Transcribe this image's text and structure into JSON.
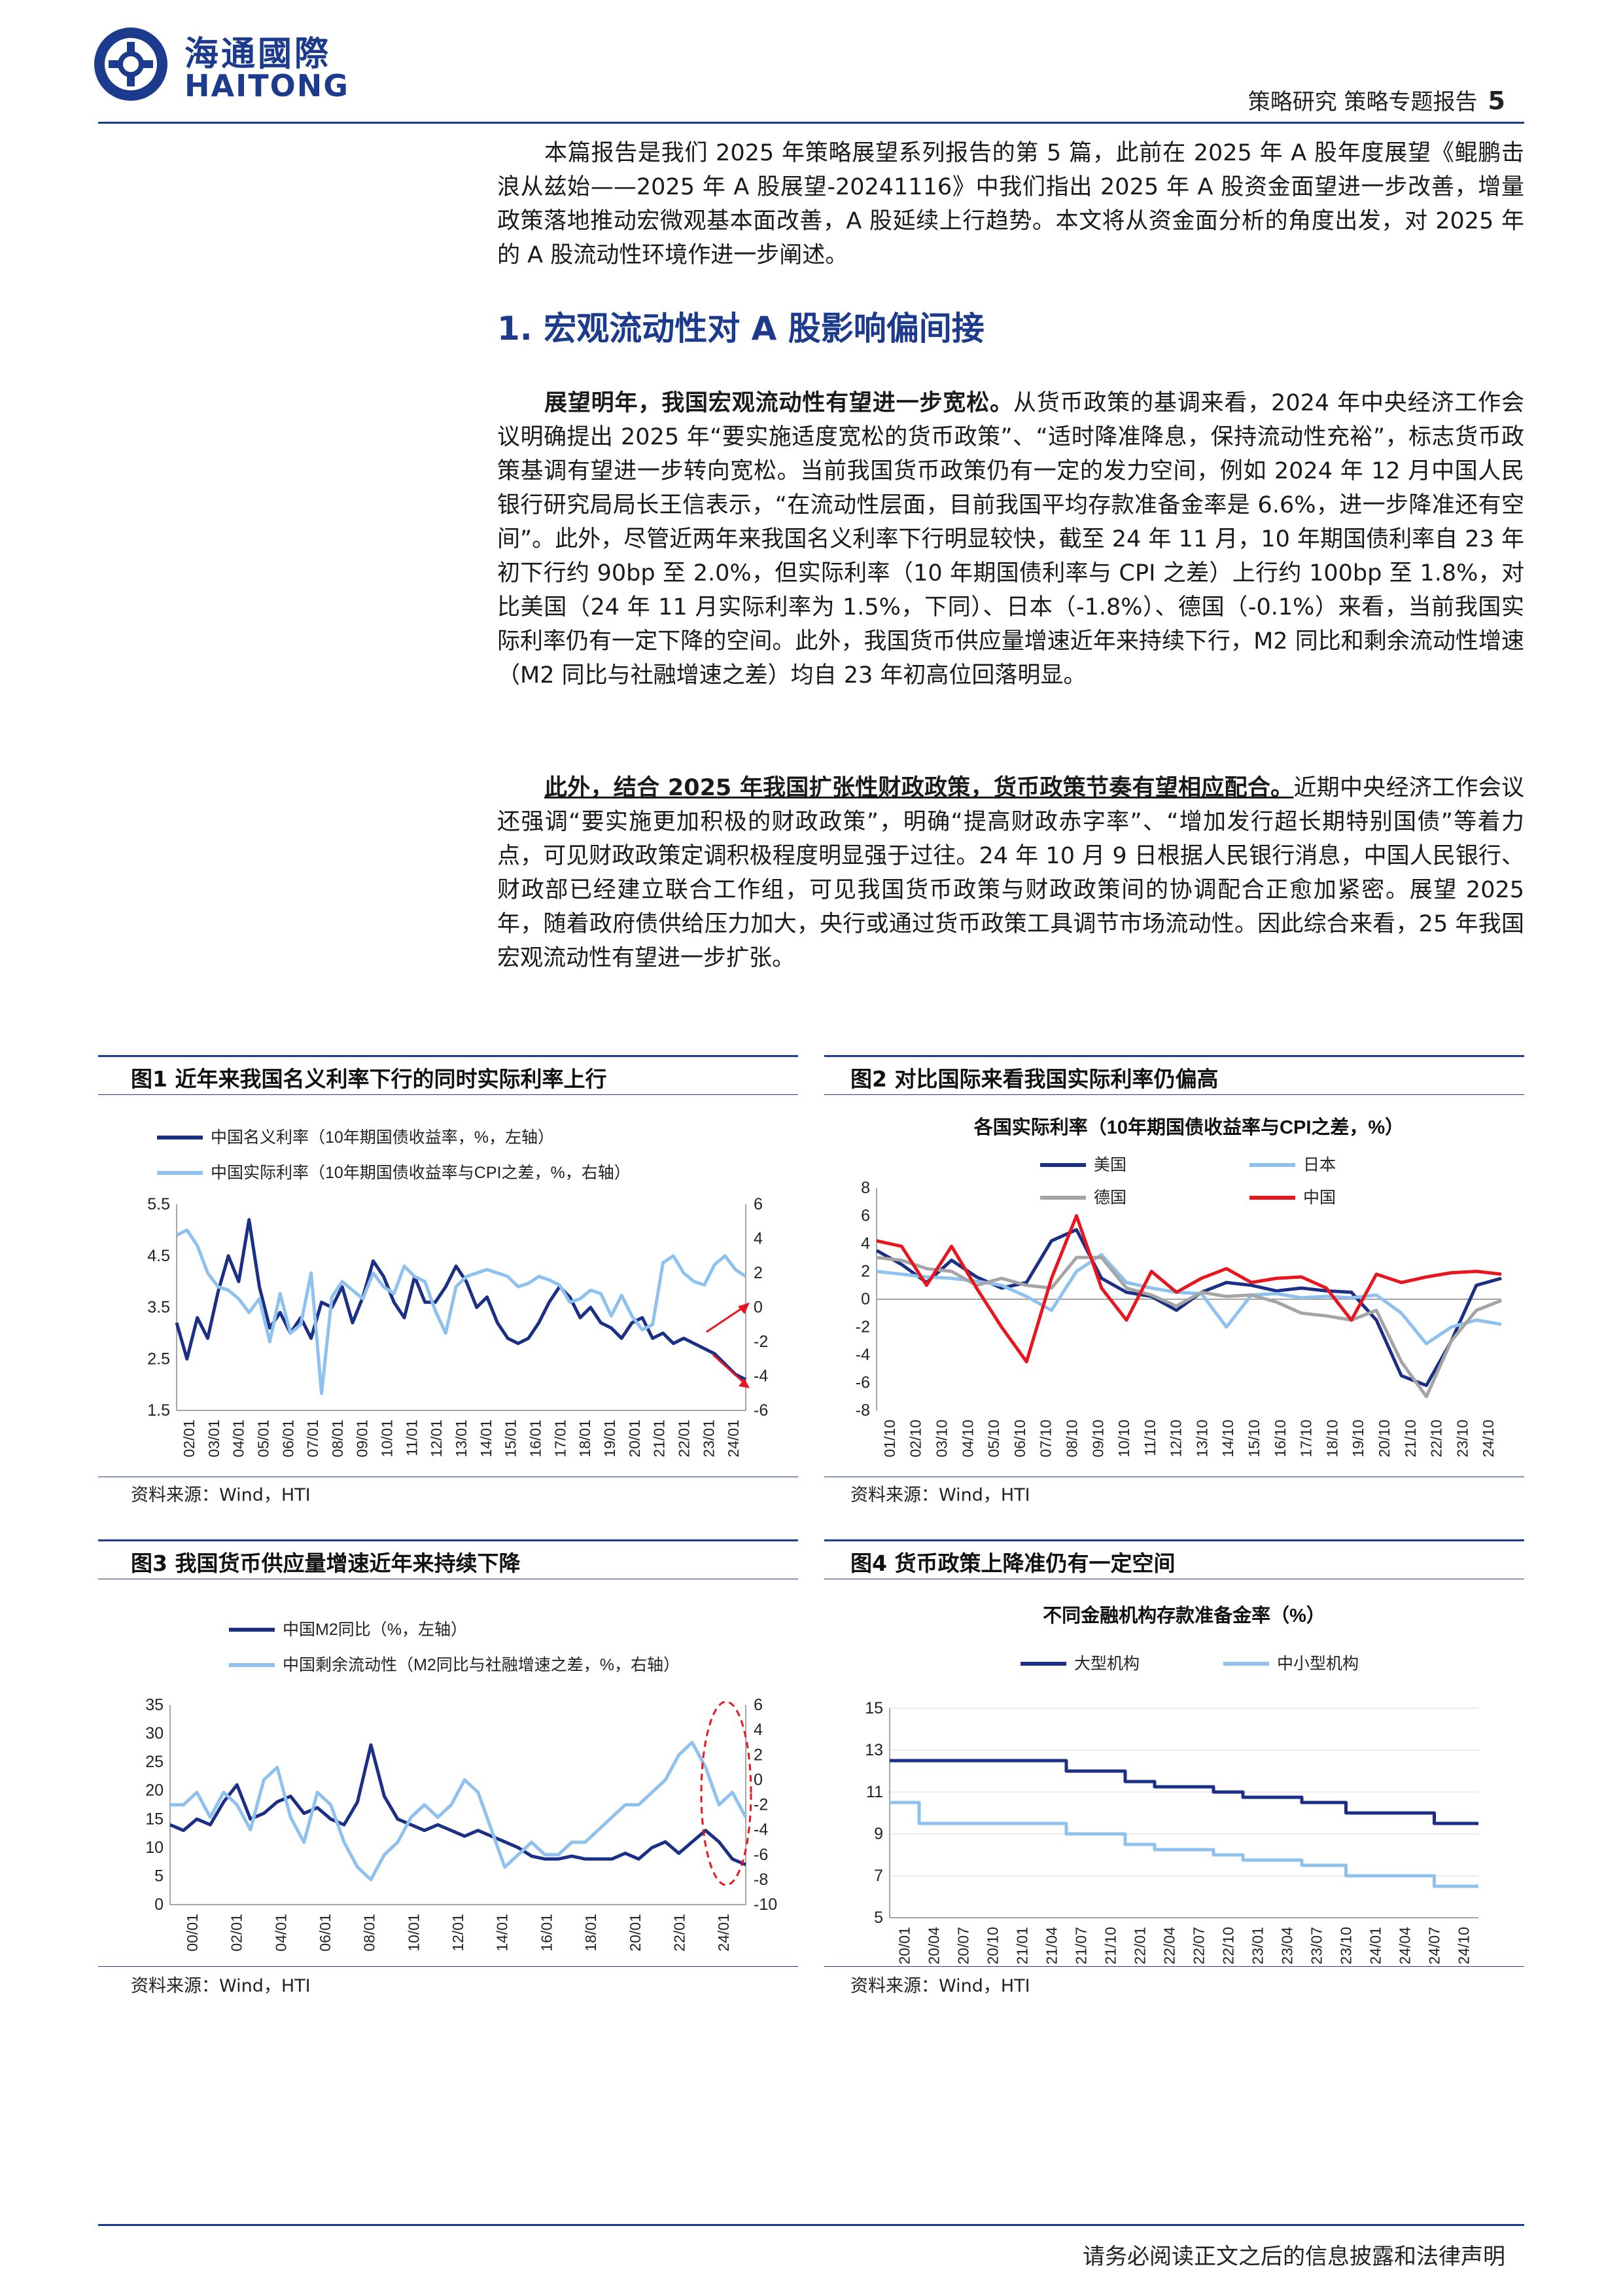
{
  "header": {
    "logo_cn": "海通國際",
    "logo_en": "HAITONG",
    "section": "策略研究  策略专题报告",
    "page_number": "5"
  },
  "intro": "本篇报告是我们 2025 年策略展望系列报告的第 5 篇，此前在 2025 年 A 股年度展望《鲲鹏击浪从兹始——2025 年 A 股展望-20241116》中我们指出 2025 年 A 股资金面望进一步改善，增量政策落地推动宏微观基本面改善，A 股延续上行趋势。本文将从资金面分析的角度出发，对 2025 年的 A 股流动性环境作进一步阐述。",
  "section1_title": "1.  宏观流动性对 A 股影响偏间接",
  "para1_lead": "展望明年，我国宏观流动性有望进一步宽松。",
  "para1_body": "从货币政策的基调来看，2024 年中央经济工作会议明确提出 2025 年“要实施适度宽松的货币政策”、“适时降准降息，保持流动性充裕”，标志货币政策基调有望进一步转向宽松。当前我国货币政策仍有一定的发力空间，例如 2024 年 12 月中国人民银行研究局局长王信表示，“在流动性层面，目前我国平均存款准备金率是 6.6%，进一步降准还有空间”。此外，尽管近两年来我国名义利率下行明显较快，截至 24 年 11 月，10 年期国债利率自 23 年初下行约 90bp 至 2.0%，但实际利率（10 年期国债利率与 CPI 之差）上行约 100bp 至 1.8%，对比美国（24 年 11 月实际利率为 1.5%，下同）、日本（-1.8%）、德国（-0.1%）来看，当前我国实际利率仍有一定下降的空间。此外，我国货币供应量增速近年来持续下行，M2 同比和剩余流动性增速（M2 同比与社融增速之差）均自 23 年初高位回落明显。",
  "para2_lead": "此外，结合 2025 年我国扩张性财政政策，货币政策节奏有望相应配合。",
  "para2_body": "近期中央经济工作会议还强调“要实施更加积极的财政政策”，明确“提高财政赤字率”、“增加发行超长期特别国债”等着力点，可见财政政策定调积极程度明显强于过往。24 年 10 月 9 日根据人民银行消息，中国人民银行、财政部已经建立联合工作组，可见我国货币政策与财政政策间的协调配合正愈加紧密。展望 2025 年，随着政府债供给压力加大，央行或通过货币政策工具调节市场流动性。因此综合来看，25 年我国宏观流动性有望进一步扩张。",
  "figures": {
    "fig1": {
      "title": "图1  近年来我国名义利率下行的同时实际利率上行",
      "source": "资料来源：Wind，HTI"
    },
    "fig2": {
      "title": "图2  对比国际来看我国实际利率仍偏高",
      "source": "资料来源：Wind，HTI"
    },
    "fig3": {
      "title": "图3  我国货币供应量增速近年来持续下降",
      "source": "资料来源：Wind，HTI"
    },
    "fig4": {
      "title": "图4  货币政策上降准仍有一定空间",
      "source": "资料来源：Wind，HTI"
    }
  },
  "colors": {
    "dark_blue": "#1c2f86",
    "light_blue": "#8ec1ee",
    "red": "#e8161f",
    "gray": "#a5a5a5",
    "brand": "#1d3b8c"
  },
  "chart_data": [
    {
      "type": "line",
      "id": "fig1",
      "title": "",
      "x_ticks": [
        "02/01",
        "03/01",
        "04/01",
        "05/01",
        "06/01",
        "07/01",
        "08/01",
        "09/01",
        "10/01",
        "11/01",
        "12/01",
        "13/01",
        "14/01",
        "15/01",
        "16/01",
        "17/01",
        "18/01",
        "19/01",
        "20/01",
        "21/01",
        "22/01",
        "23/01",
        "24/01"
      ],
      "ylim_left": [
        1.5,
        5.5
      ],
      "yticks_left": [
        "1.5",
        "2.5",
        "3.5",
        "4.5",
        "5.5"
      ],
      "ylim_right": [
        -6,
        6
      ],
      "yticks_right": [
        "-6",
        "-4",
        "-2",
        "0",
        "2",
        "4",
        "6"
      ],
      "series": [
        {
          "name": "中国名义利率（10年期国债收益率，%，左轴）",
          "axis": "left",
          "values": [
            3.2,
            2.5,
            3.3,
            2.9,
            3.8,
            4.5,
            4.0,
            5.2,
            3.9,
            3.1,
            3.4,
            3.0,
            3.3,
            2.9,
            3.6,
            3.5,
            3.9,
            3.2,
            3.7,
            4.4,
            4.1,
            3.6,
            3.3,
            4.1,
            3.6,
            3.6,
            3.9,
            4.3,
            4.0,
            3.5,
            3.7,
            3.2,
            2.9,
            2.8,
            2.9,
            3.2,
            3.6,
            3.9,
            3.7,
            3.3,
            3.5,
            3.2,
            3.1,
            2.9,
            3.2,
            3.3,
            2.9,
            3.0,
            2.8,
            2.9,
            2.8,
            2.7,
            2.6,
            2.4,
            2.2,
            2.1
          ]
        },
        {
          "name": "中国实际利率（10年期国债收益率与CPI之差，%，右轴）",
          "axis": "right",
          "values": [
            4.2,
            4.5,
            3.6,
            2.0,
            1.2,
            1.0,
            0.5,
            -0.3,
            0.5,
            -2.0,
            0.8,
            -1.5,
            -1.0,
            2.0,
            -5.0,
            0.6,
            1.5,
            1.0,
            0.5,
            2.0,
            1.2,
            0.8,
            2.4,
            1.8,
            1.5,
            -0.2,
            -1.5,
            1.2,
            1.8,
            2.0,
            2.2,
            2.0,
            1.8,
            1.2,
            1.4,
            1.8,
            1.6,
            1.3,
            0.3,
            0.5,
            1.0,
            0.8,
            -0.5,
            0.7,
            -0.5,
            -1.3,
            -1.0,
            2.6,
            3.0,
            2.0,
            1.5,
            1.3,
            2.5,
            3.0,
            2.2,
            1.8
          ]
        }
      ]
    },
    {
      "type": "line",
      "id": "fig2",
      "title": "各国实际利率（10年期国债收益率与CPI之差，%）",
      "x_ticks": [
        "01/10",
        "02/10",
        "03/10",
        "04/10",
        "05/10",
        "06/10",
        "07/10",
        "08/10",
        "09/10",
        "10/10",
        "11/10",
        "12/10",
        "13/10",
        "14/10",
        "15/10",
        "16/10",
        "17/10",
        "18/10",
        "19/10",
        "20/10",
        "21/10",
        "22/10",
        "23/10",
        "24/10"
      ],
      "ylim": [
        -8,
        8
      ],
      "yticks": [
        "-8",
        "-6",
        "-4",
        "-2",
        "0",
        "2",
        "4",
        "6",
        "8"
      ],
      "series": [
        {
          "name": "美国",
          "values": [
            3.5,
            2.5,
            1.2,
            2.8,
            1.6,
            0.8,
            1.2,
            4.2,
            5.0,
            1.5,
            0.5,
            0.2,
            -0.8,
            0.5,
            1.2,
            1.0,
            0.6,
            0.8,
            0.6,
            0.5,
            -1.5,
            -5.5,
            -6.2,
            -3.0,
            1.0,
            1.5
          ]
        },
        {
          "name": "日本",
          "values": [
            2.0,
            1.8,
            1.6,
            1.5,
            1.3,
            1.0,
            0.2,
            -0.8,
            2.0,
            3.2,
            1.2,
            0.8,
            0.5,
            0.4,
            -2.0,
            0.3,
            0.4,
            0.1,
            0.2,
            0.1,
            0.3,
            -1.0,
            -3.2,
            -2.0,
            -1.5,
            -1.8
          ]
        },
        {
          "name": "德国",
          "values": [
            3.0,
            2.8,
            2.2,
            2.0,
            1.0,
            1.5,
            1.0,
            0.8,
            3.0,
            3.0,
            0.8,
            0.3,
            -0.5,
            0.5,
            0.2,
            0.3,
            -0.2,
            -1.0,
            -1.2,
            -1.5,
            -0.8,
            -4.5,
            -7.0,
            -3.0,
            -0.8,
            -0.1
          ]
        },
        {
          "name": "中国",
          "values": [
            4.2,
            3.8,
            1.0,
            3.8,
            0.8,
            -2.0,
            -4.5,
            1.5,
            6.0,
            0.8,
            -1.5,
            2.0,
            0.5,
            1.5,
            2.2,
            1.2,
            1.5,
            1.6,
            0.8,
            -1.5,
            1.8,
            1.2,
            1.6,
            1.9,
            2.0,
            1.8
          ]
        }
      ]
    },
    {
      "type": "line",
      "id": "fig3",
      "title": "",
      "x_ticks": [
        "00/01",
        "02/01",
        "04/01",
        "06/01",
        "08/01",
        "10/01",
        "12/01",
        "14/01",
        "16/01",
        "18/01",
        "20/01",
        "22/01",
        "24/01"
      ],
      "ylim_left": [
        0,
        35
      ],
      "yticks_left": [
        "0",
        "5",
        "10",
        "15",
        "20",
        "25",
        "30",
        "35"
      ],
      "ylim_right": [
        -10,
        6
      ],
      "yticks_right": [
        "-10",
        "-8",
        "-6",
        "-4",
        "-2",
        "0",
        "2",
        "4",
        "6"
      ],
      "series": [
        {
          "name": "中国M2同比（%，左轴）",
          "axis": "left",
          "values": [
            14,
            13,
            15,
            14,
            18,
            21,
            15,
            16,
            18,
            19,
            16,
            17,
            15,
            14,
            18,
            28,
            19,
            15,
            14,
            13,
            14,
            13,
            12,
            13,
            12,
            11,
            10,
            8.5,
            8,
            8,
            8.5,
            8,
            8,
            8,
            9,
            8,
            10,
            11,
            9,
            11,
            13,
            11,
            8,
            7
          ]
        },
        {
          "name": "中国剩余流动性（M2同比与社融增速之差，%，右轴）",
          "axis": "right",
          "values": [
            -2,
            -2,
            -1,
            -3,
            -1,
            -2,
            -4,
            0,
            1,
            -3,
            -5,
            -1,
            -2,
            -5,
            -7,
            -8,
            -6,
            -5,
            -3,
            -2,
            -3,
            -2,
            0,
            -1,
            -4,
            -7,
            -6,
            -5,
            -6,
            -6,
            -5,
            -5,
            -4,
            -3,
            -2,
            -2,
            -1,
            0,
            2,
            3,
            1,
            -2,
            -1,
            -3
          ]
        }
      ]
    },
    {
      "type": "line",
      "id": "fig4",
      "title": "不同金融机构存款准备金率（%）",
      "x_ticks": [
        "20/01",
        "20/04",
        "20/07",
        "20/10",
        "21/01",
        "21/04",
        "21/07",
        "21/10",
        "22/01",
        "22/04",
        "22/07",
        "22/10",
        "23/01",
        "23/04",
        "23/07",
        "23/10",
        "24/01",
        "24/04",
        "24/07",
        "24/10"
      ],
      "ylim": [
        5,
        15
      ],
      "yticks": [
        "5",
        "7",
        "9",
        "11",
        "13",
        "15"
      ],
      "series": [
        {
          "name": "大型机构",
          "values": [
            12.5,
            12.5,
            12.5,
            12.5,
            12.5,
            12.5,
            12.5,
            12.5,
            12.5,
            12.5,
            12.5,
            12.5,
            12.0,
            12.0,
            12.0,
            12.0,
            11.5,
            11.5,
            11.25,
            11.25,
            11.25,
            11.25,
            11.0,
            11.0,
            10.75,
            10.75,
            10.75,
            10.75,
            10.5,
            10.5,
            10.5,
            10.0,
            10.0,
            10.0,
            10.0,
            10.0,
            10.0,
            9.5,
            9.5,
            9.5
          ]
        },
        {
          "name": "中小型机构",
          "values": [
            10.5,
            10.5,
            9.5,
            9.5,
            9.5,
            9.5,
            9.5,
            9.5,
            9.5,
            9.5,
            9.5,
            9.5,
            9.0,
            9.0,
            9.0,
            9.0,
            8.5,
            8.5,
            8.25,
            8.25,
            8.25,
            8.25,
            8.0,
            8.0,
            7.75,
            7.75,
            7.75,
            7.75,
            7.5,
            7.5,
            7.5,
            7.0,
            7.0,
            7.0,
            7.0,
            7.0,
            7.0,
            6.5,
            6.5,
            6.5
          ]
        }
      ]
    }
  ]
}
